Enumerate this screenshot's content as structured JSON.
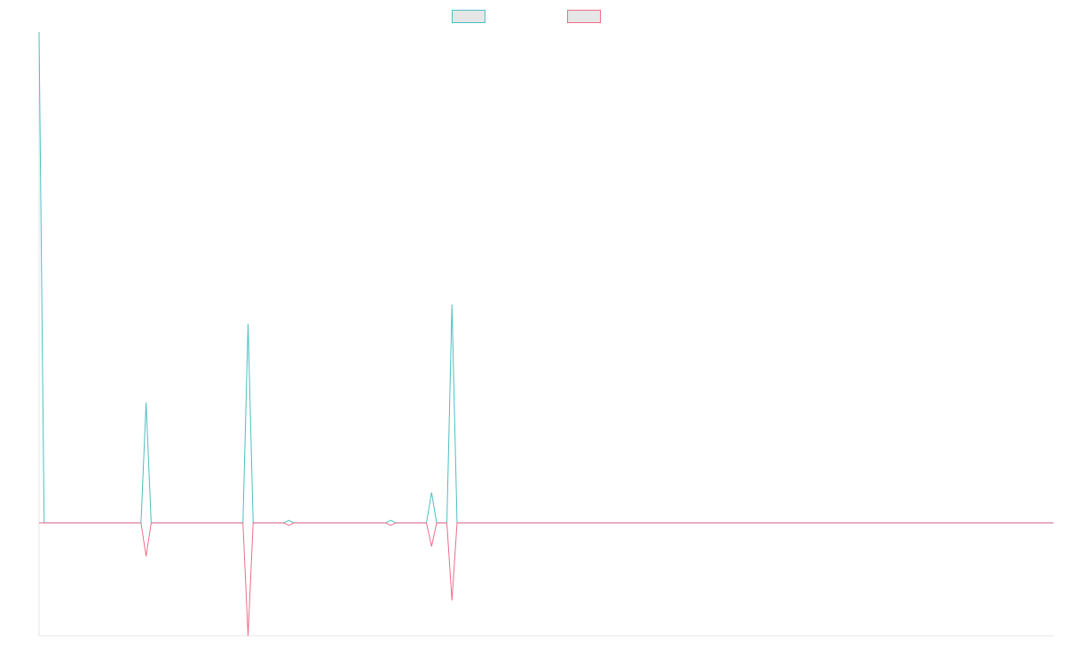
{
  "chart_data": {
    "type": "line",
    "title": "",
    "xlabel": "",
    "ylabel": "",
    "grid": false,
    "legend_position": "top",
    "x_count": 200,
    "ylim": [
      -0.23,
      1.0
    ],
    "series": [
      {
        "color": "#4bc0c0",
        "points": [
          [
            0,
            1.0
          ],
          [
            1,
            0.0
          ],
          [
            20,
            0.0
          ],
          [
            21,
            0.245
          ],
          [
            22,
            0.0
          ],
          [
            40,
            0.0
          ],
          [
            41,
            0.405
          ],
          [
            42,
            0.0
          ],
          [
            48,
            0.0
          ],
          [
            49,
            0.005
          ],
          [
            50,
            0.0
          ],
          [
            68,
            0.0
          ],
          [
            69,
            0.005
          ],
          [
            70,
            0.0
          ],
          [
            76,
            0.0
          ],
          [
            77,
            0.062
          ],
          [
            78,
            0.0
          ],
          [
            80,
            0.0
          ],
          [
            81,
            0.445
          ],
          [
            82,
            0.0
          ],
          [
            199,
            0.0
          ]
        ]
      },
      {
        "color": "#f06b8c",
        "points": [
          [
            0,
            0.0
          ],
          [
            20,
            0.0
          ],
          [
            21,
            -0.068
          ],
          [
            22,
            0.0
          ],
          [
            40,
            0.0
          ],
          [
            41,
            -0.23
          ],
          [
            42,
            0.0
          ],
          [
            48,
            0.0
          ],
          [
            49,
            -0.005
          ],
          [
            50,
            0.0
          ],
          [
            68,
            0.0
          ],
          [
            69,
            -0.005
          ],
          [
            70,
            0.0
          ],
          [
            76,
            0.0
          ],
          [
            77,
            -0.048
          ],
          [
            78,
            0.0
          ],
          [
            80,
            0.0
          ],
          [
            81,
            -0.158
          ],
          [
            82,
            0.0
          ],
          [
            199,
            0.0
          ]
        ]
      }
    ]
  }
}
